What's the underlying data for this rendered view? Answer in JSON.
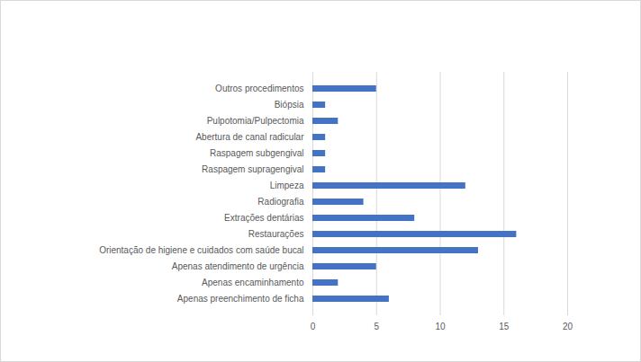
{
  "chart_data": {
    "type": "bar",
    "orientation": "horizontal",
    "categories": [
      "Outros procedimentos",
      "Biópsia",
      "Pulpotomia/Pulpectomia",
      "Abertura de canal radicular",
      "Raspagem subgengival",
      "Raspagem supragengival",
      "Limpeza",
      "Radiografia",
      "Extrações dentárias",
      "Restaurações",
      "Orientação de higiene e cuidados com saúde bucal",
      "Apenas atendimento de urgência",
      "Apenas encaminhamento",
      "Apenas preenchimento de ficha"
    ],
    "values": [
      5,
      1,
      2,
      1,
      1,
      1,
      12,
      4,
      8,
      16,
      13,
      5,
      2,
      6
    ],
    "color": "#4472c4",
    "xlim": [
      0,
      20
    ],
    "xticks": [
      0,
      5,
      10,
      15,
      20
    ],
    "grid": true
  }
}
